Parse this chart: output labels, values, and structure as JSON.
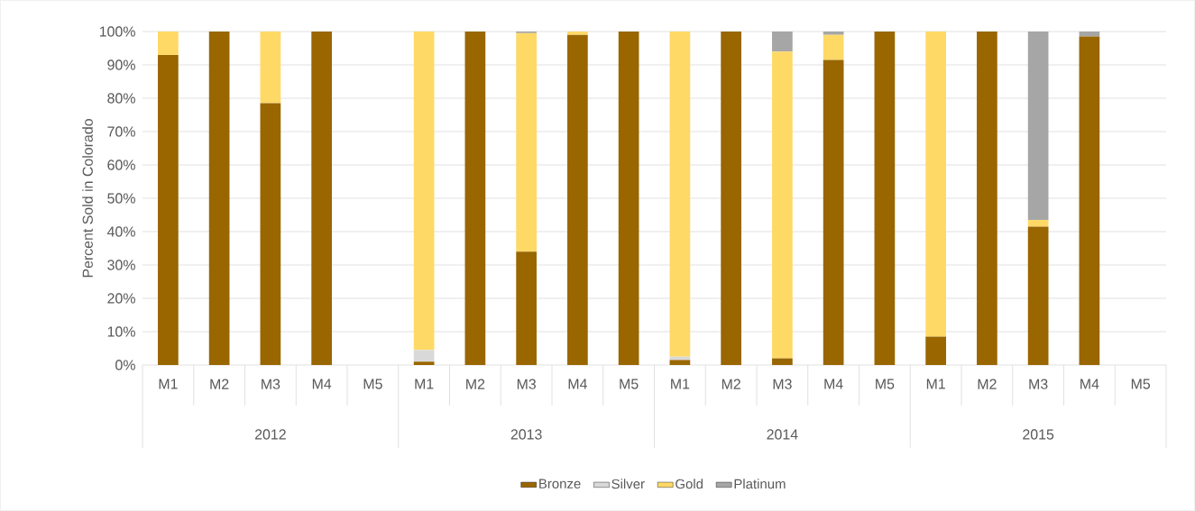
{
  "chart_data": {
    "type": "bar",
    "stacked": true,
    "ylabel": "Percent Sold in Colorado",
    "categories": [
      "M1",
      "M2",
      "M3",
      "M4",
      "M5",
      "M1",
      "M2",
      "M3",
      "M4",
      "M5",
      "M1",
      "M2",
      "M3",
      "M4",
      "M5",
      "M1",
      "M2",
      "M3",
      "M4",
      "M5"
    ],
    "annotations": [
      "2012",
      "2013",
      "2014",
      "2015"
    ],
    "series": [
      {
        "name": "Bronze",
        "color": "#996600",
        "values": [
          93,
          100,
          78.5,
          100,
          null,
          1,
          100,
          34,
          99,
          100,
          1.5,
          100,
          2,
          91.5,
          100,
          8.5,
          100,
          41.5,
          98.5,
          null
        ]
      },
      {
        "name": "Silver",
        "color": "#d9d9d9",
        "values": [
          null,
          null,
          null,
          null,
          null,
          3.5,
          null,
          null,
          null,
          null,
          1,
          null,
          null,
          null,
          null,
          null,
          null,
          null,
          null,
          null
        ]
      },
      {
        "name": "Gold",
        "color": "#ffd966",
        "values": [
          7,
          null,
          21.5,
          null,
          null,
          95.5,
          null,
          65.5,
          1,
          null,
          97.5,
          null,
          92,
          7.5,
          null,
          91.5,
          null,
          2,
          null,
          null
        ]
      },
      {
        "name": "Platinum",
        "color": "#a6a6a6",
        "values": [
          null,
          null,
          null,
          null,
          null,
          null,
          null,
          0.5,
          null,
          null,
          null,
          null,
          6,
          1,
          null,
          null,
          null,
          56.5,
          1.5,
          null
        ]
      }
    ],
    "ylim": [
      0,
      100
    ],
    "yticks": [
      {
        "value": 0,
        "label": "0%"
      },
      {
        "value": 10,
        "label": "10%"
      },
      {
        "value": 20,
        "label": "20%"
      },
      {
        "value": 30,
        "label": "30%"
      },
      {
        "value": 40,
        "label": "40%"
      },
      {
        "value": 50,
        "label": "50%"
      },
      {
        "value": 60,
        "label": "60%"
      },
      {
        "value": 70,
        "label": "70%"
      },
      {
        "value": 80,
        "label": "80%"
      },
      {
        "value": 90,
        "label": "90%"
      },
      {
        "value": 100,
        "label": "100%"
      }
    ],
    "grid": "y",
    "legend": "bottom"
  }
}
